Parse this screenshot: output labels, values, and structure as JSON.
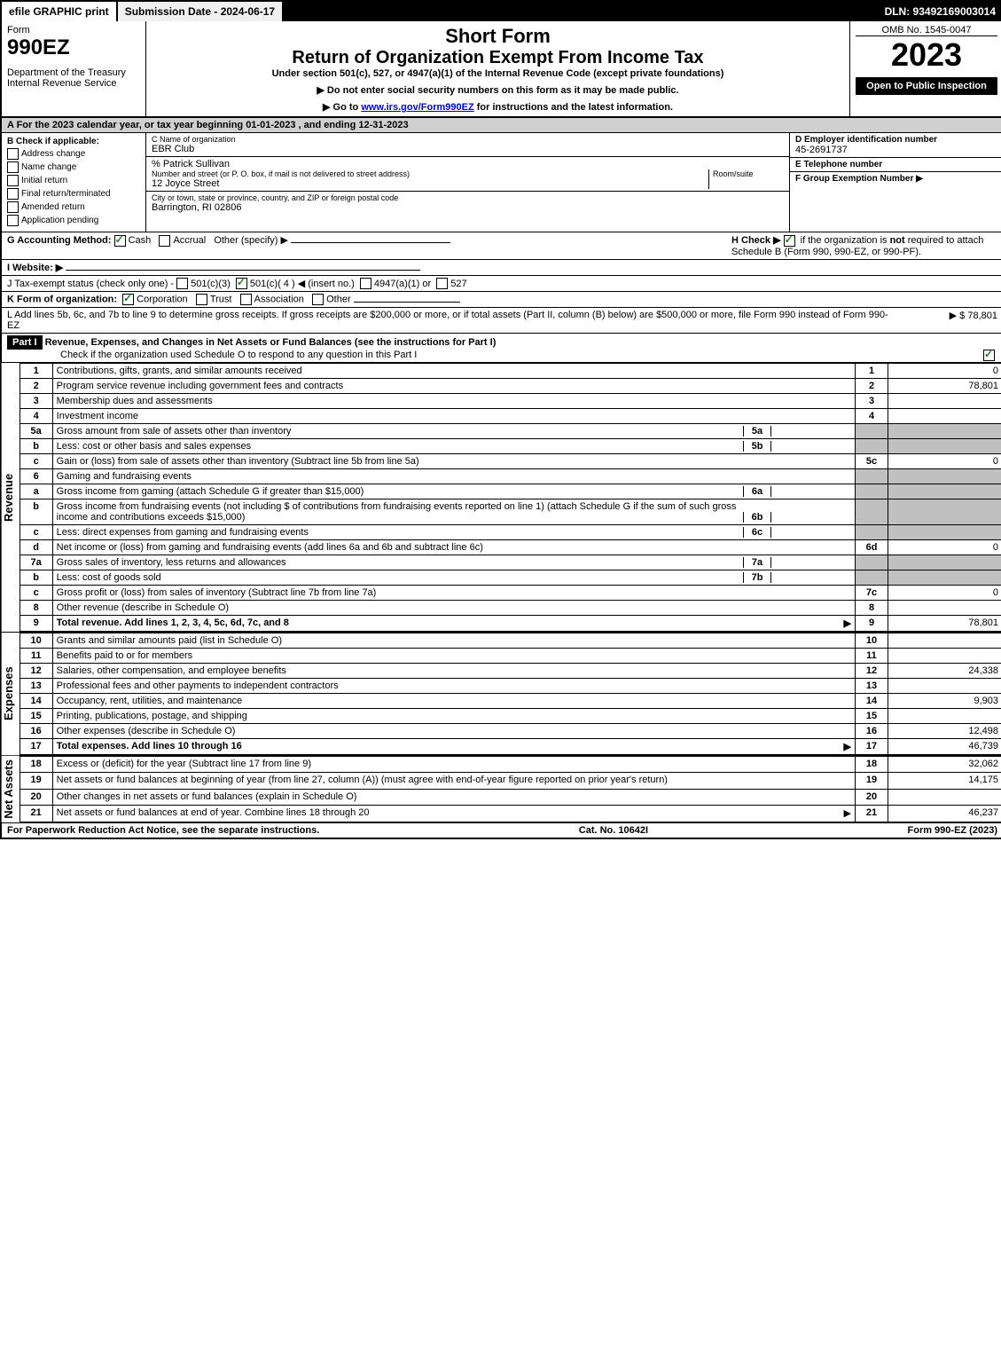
{
  "topbar": {
    "efile": "efile GRAPHIC print",
    "submission": "Submission Date - 2024-06-17",
    "dln": "DLN: 93492169003014"
  },
  "header": {
    "form_label": "Form",
    "form_no": "990EZ",
    "dept": "Department of the Treasury",
    "irs": "Internal Revenue Service",
    "short_form": "Short Form",
    "main_title": "Return of Organization Exempt From Income Tax",
    "subtitle": "Under section 501(c), 527, or 4947(a)(1) of the Internal Revenue Code (except private foundations)",
    "instr1": "▶ Do not enter social security numbers on this form as it may be made public.",
    "instr2_prefix": "▶ Go to ",
    "instr2_link": "www.irs.gov/Form990EZ",
    "instr2_suffix": " for instructions and the latest information.",
    "omb": "OMB No. 1545-0047",
    "year": "2023",
    "open": "Open to Public Inspection"
  },
  "section_a": "A  For the 2023 calendar year, or tax year beginning 01-01-2023 , and ending 12-31-2023",
  "col_b": {
    "title": "B  Check if applicable:",
    "items": [
      "Address change",
      "Name change",
      "Initial return",
      "Final return/terminated",
      "Amended return",
      "Application pending"
    ]
  },
  "col_c": {
    "name_label": "C Name of organization",
    "name": "EBR Club",
    "care_of": "% Patrick Sullivan",
    "street_label": "Number and street (or P. O. box, if mail is not delivered to street address)",
    "room_label": "Room/suite",
    "street": "12 Joyce Street",
    "city_label": "City or town, state or province, country, and ZIP or foreign postal code",
    "city": "Barrington, RI  02806"
  },
  "col_d": {
    "label": "D Employer identification number",
    "value": "45-2691737"
  },
  "col_e": {
    "label": "E Telephone number",
    "value": ""
  },
  "col_f": {
    "label": "F Group Exemption Number  ▶",
    "value": ""
  },
  "line_g": {
    "label": "G Accounting Method:",
    "cash": "Cash",
    "accrual": "Accrual",
    "other": "Other (specify) ▶"
  },
  "line_h": {
    "label": "H  Check ▶",
    "text": "if the organization is not required to attach Schedule B (Form 990, 990-EZ, or 990-PF).",
    "bold_not": "not"
  },
  "line_i": "I Website: ▶",
  "line_j": {
    "prefix": "J Tax-exempt status (check only one) - ",
    "opt1": "501(c)(3)",
    "opt2": "501(c)( 4 ) ◀ (insert no.)",
    "opt3": "4947(a)(1) or",
    "opt4": "527"
  },
  "line_k": {
    "prefix": "K Form of organization:",
    "opt1": "Corporation",
    "opt2": "Trust",
    "opt3": "Association",
    "opt4": "Other"
  },
  "line_l": {
    "text": "L Add lines 5b, 6c, and 7b to line 9 to determine gross receipts. If gross receipts are $200,000 or more, or if total assets (Part II, column (B) below) are $500,000 or more, file Form 990 instead of Form 990-EZ",
    "amount": "▶ $ 78,801"
  },
  "part1": {
    "label": "Part I",
    "title": "Revenue, Expenses, and Changes in Net Assets or Fund Balances (see the instructions for Part I)",
    "check_text": "Check if the organization used Schedule O to respond to any question in this Part I"
  },
  "revenue_label": "Revenue",
  "expenses_label": "Expenses",
  "netassets_label": "Net Assets",
  "rows": [
    {
      "n": "1",
      "label": "Contributions, gifts, grants, and similar amounts received",
      "rn": "1",
      "rv": "0"
    },
    {
      "n": "2",
      "label": "Program service revenue including government fees and contracts",
      "rn": "2",
      "rv": "78,801"
    },
    {
      "n": "3",
      "label": "Membership dues and assessments",
      "rn": "3",
      "rv": ""
    },
    {
      "n": "4",
      "label": "Investment income",
      "rn": "4",
      "rv": ""
    },
    {
      "n": "5a",
      "label": "Gross amount from sale of assets other than inventory",
      "sn": "5a",
      "sv": "",
      "shaded": true
    },
    {
      "n": "b",
      "label": "Less: cost or other basis and sales expenses",
      "sn": "5b",
      "sv": "",
      "shaded": true
    },
    {
      "n": "c",
      "label": "Gain or (loss) from sale of assets other than inventory (Subtract line 5b from line 5a)",
      "rn": "5c",
      "rv": "0"
    },
    {
      "n": "6",
      "label": "Gaming and fundraising events",
      "shaded": true
    },
    {
      "n": "a",
      "label": "Gross income from gaming (attach Schedule G if greater than $15,000)",
      "sn": "6a",
      "sv": "",
      "shaded": true
    },
    {
      "n": "b",
      "label": "Gross income from fundraising events (not including $                      of contributions from fundraising events reported on line 1) (attach Schedule G if the sum of such gross income and contributions exceeds $15,000)",
      "sn": "6b",
      "sv": "",
      "shaded": true
    },
    {
      "n": "c",
      "label": "Less: direct expenses from gaming and fundraising events",
      "sn": "6c",
      "sv": "",
      "shaded": true
    },
    {
      "n": "d",
      "label": "Net income or (loss) from gaming and fundraising events (add lines 6a and 6b and subtract line 6c)",
      "rn": "6d",
      "rv": "0"
    },
    {
      "n": "7a",
      "label": "Gross sales of inventory, less returns and allowances",
      "sn": "7a",
      "sv": "",
      "shaded": true
    },
    {
      "n": "b",
      "label": "Less: cost of goods sold",
      "sn": "7b",
      "sv": "",
      "shaded": true
    },
    {
      "n": "c",
      "label": "Gross profit or (loss) from sales of inventory (Subtract line 7b from line 7a)",
      "rn": "7c",
      "rv": "0"
    },
    {
      "n": "8",
      "label": "Other revenue (describe in Schedule O)",
      "rn": "8",
      "rv": ""
    },
    {
      "n": "9",
      "label": "Total revenue. Add lines 1, 2, 3, 4, 5c, 6d, 7c, and 8",
      "rn": "9",
      "rv": "78,801",
      "bold": true,
      "arrow": true
    }
  ],
  "exp_rows": [
    {
      "n": "10",
      "label": "Grants and similar amounts paid (list in Schedule O)",
      "rn": "10",
      "rv": ""
    },
    {
      "n": "11",
      "label": "Benefits paid to or for members",
      "rn": "11",
      "rv": ""
    },
    {
      "n": "12",
      "label": "Salaries, other compensation, and employee benefits",
      "rn": "12",
      "rv": "24,338"
    },
    {
      "n": "13",
      "label": "Professional fees and other payments to independent contractors",
      "rn": "13",
      "rv": ""
    },
    {
      "n": "14",
      "label": "Occupancy, rent, utilities, and maintenance",
      "rn": "14",
      "rv": "9,903"
    },
    {
      "n": "15",
      "label": "Printing, publications, postage, and shipping",
      "rn": "15",
      "rv": ""
    },
    {
      "n": "16",
      "label": "Other expenses (describe in Schedule O)",
      "rn": "16",
      "rv": "12,498"
    },
    {
      "n": "17",
      "label": "Total expenses. Add lines 10 through 16",
      "rn": "17",
      "rv": "46,739",
      "bold": true,
      "arrow": true
    }
  ],
  "net_rows": [
    {
      "n": "18",
      "label": "Excess or (deficit) for the year (Subtract line 17 from line 9)",
      "rn": "18",
      "rv": "32,062"
    },
    {
      "n": "19",
      "label": "Net assets or fund balances at beginning of year (from line 27, column (A)) (must agree with end-of-year figure reported on prior year's return)",
      "rn": "19",
      "rv": "14,175"
    },
    {
      "n": "20",
      "label": "Other changes in net assets or fund balances (explain in Schedule O)",
      "rn": "20",
      "rv": ""
    },
    {
      "n": "21",
      "label": "Net assets or fund balances at end of year. Combine lines 18 through 20",
      "rn": "21",
      "rv": "46,237",
      "arrow": true
    }
  ],
  "footer": {
    "left": "For Paperwork Reduction Act Notice, see the separate instructions.",
    "center": "Cat. No. 10642I",
    "right": "Form 990-EZ (2023)"
  },
  "colors": {
    "shaded": "#c0c0c0",
    "section_bg": "#d0d0d0",
    "check": "#2a7a2a"
  }
}
